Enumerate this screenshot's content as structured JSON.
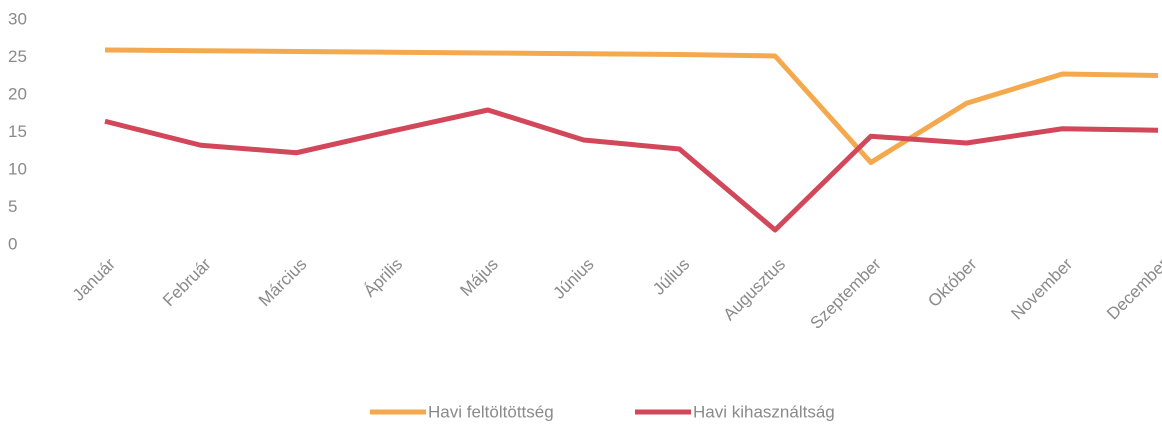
{
  "chart_data": {
    "type": "line",
    "categories": [
      "Január",
      "Február",
      "Március",
      "Április",
      "Május",
      "Június",
      "Július",
      "Augusztus",
      "Szeptember",
      "Október",
      "November",
      "December"
    ],
    "series": [
      {
        "name": "Havi feltöltöttség",
        "color": "#f5a94e",
        "values": [
          26,
          25.9,
          25.8,
          25.7,
          25.6,
          25.5,
          25.4,
          25.2,
          11,
          18.9,
          22.8,
          22.6
        ]
      },
      {
        "name": "Havi kihasználtság",
        "color": "#d2475a",
        "values": [
          16.5,
          13.3,
          12.3,
          15.2,
          18,
          14,
          12.8,
          2,
          14.5,
          13.6,
          15.5,
          15.3
        ]
      }
    ],
    "ylim": [
      0,
      30
    ],
    "yticks": [
      0,
      5,
      10,
      15,
      20,
      25,
      30
    ],
    "grid": false,
    "legend": "bottom"
  }
}
